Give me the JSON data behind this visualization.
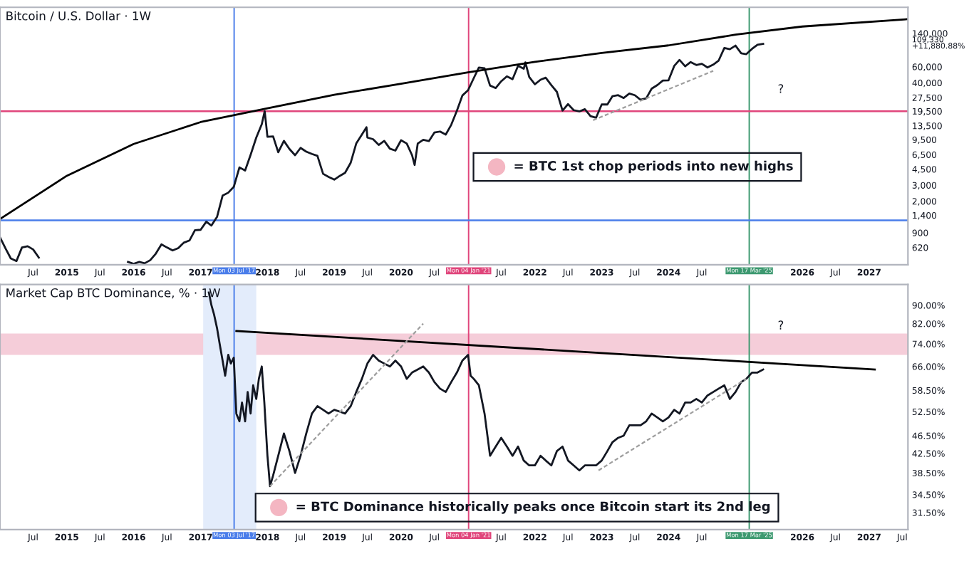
{
  "chart_data": [
    {
      "type": "line",
      "title": "Bitcoin / U.S. Dollar · 1W",
      "log": "y",
      "grid": false,
      "xlim": [
        "2014-01-01",
        "2027-08-01"
      ],
      "xticks": [
        {
          "value": "2014-07-01",
          "label": "Jul"
        },
        {
          "value": "2015-01-01",
          "label": "2015"
        },
        {
          "value": "2015-07-01",
          "label": "Jul"
        },
        {
          "value": "2016-01-01",
          "label": "2016"
        },
        {
          "value": "2016-07-01",
          "label": "Jul"
        },
        {
          "value": "2017-01-01",
          "label": "2017"
        },
        {
          "value": "2018-01-01",
          "label": "2018"
        },
        {
          "value": "2018-07-01",
          "label": "Jul"
        },
        {
          "value": "2019-01-01",
          "label": "2019"
        },
        {
          "value": "2019-07-01",
          "label": "Jul"
        },
        {
          "value": "2020-01-01",
          "label": "2020"
        },
        {
          "value": "2020-07-01",
          "label": "Jul"
        },
        {
          "value": "2021-07-01",
          "label": "Jul"
        },
        {
          "value": "2022-01-01",
          "label": "2022"
        },
        {
          "value": "2022-07-01",
          "label": "Jul"
        },
        {
          "value": "2023-01-01",
          "label": "2023"
        },
        {
          "value": "2023-07-01",
          "label": "Jul"
        },
        {
          "value": "2024-01-01",
          "label": "2024"
        },
        {
          "value": "2024-07-01",
          "label": "Jul"
        },
        {
          "value": "2026-01-01",
          "label": "2026"
        },
        {
          "value": "2026-07-01",
          "label": "Jul"
        },
        {
          "value": "2027-01-01",
          "label": "2027"
        }
      ],
      "ylim": [
        400,
        270000
      ],
      "yticks": [
        620,
        900,
        {
          "value": 1400,
          "label": "1,400"
        },
        {
          "value": 2000,
          "label": "2,000"
        },
        {
          "value": 3000,
          "label": "3,000"
        },
        {
          "value": 4500,
          "label": "4,500"
        },
        {
          "value": 6500,
          "label": "6,500"
        },
        {
          "value": 9500,
          "label": "9,500"
        },
        {
          "value": 13500,
          "label": "13,500"
        },
        {
          "value": 19500,
          "label": "19,500"
        },
        {
          "value": 27500,
          "label": "27,500"
        },
        {
          "value": 40000,
          "label": "40,000"
        },
        {
          "value": 60000,
          "label": "60,000"
        },
        {
          "value": 109330,
          "label": "109,330\n+11,880.88%"
        },
        {
          "value": 140000,
          "label": "140,000"
        }
      ],
      "series": [
        {
          "color": "#131722",
          "x": [
            "2014-01-01",
            "2014-02-01",
            "2014-03-01",
            "2014-04-01",
            "2014-05-01",
            "2014-06-01",
            "2014-07-01",
            "2014-08-01",
            "2014-09-01",
            "2014-10-01",
            "2014-11-01",
            "2014-12-01",
            "2015-01-01",
            "2015-02-01",
            "2015-03-01",
            "2015-04-01",
            "2015-05-01",
            "2015-06-01",
            "2015-07-01",
            "2015-08-01",
            "2015-09-01",
            "2015-10-01",
            "2015-11-01",
            "2015-12-01",
            "2016-01-01",
            "2016-02-01",
            "2016-03-01",
            "2016-04-01",
            "2016-05-01",
            "2016-06-01",
            "2016-07-01",
            "2016-08-01",
            "2016-09-01",
            "2016-10-01",
            "2016-11-01",
            "2016-12-01",
            "2017-01-01",
            "2017-02-01",
            "2017-03-01",
            "2017-04-01",
            "2017-05-01",
            "2017-06-01",
            "2017-07-01",
            "2017-08-01",
            "2017-09-01",
            "2017-10-01",
            "2017-11-01",
            "2017-12-01",
            "2017-12-17",
            "2018-01-01",
            "2018-02-01",
            "2018-03-01",
            "2018-04-01",
            "2018-05-01",
            "2018-06-01",
            "2018-07-01",
            "2018-08-01",
            "2018-09-01",
            "2018-10-01",
            "2018-11-01",
            "2018-12-01",
            "2019-01-01",
            "2019-02-01",
            "2019-03-01",
            "2019-04-01",
            "2019-05-01",
            "2019-06-01",
            "2019-06-26",
            "2019-07-01",
            "2019-08-01",
            "2019-09-01",
            "2019-10-01",
            "2019-11-01",
            "2019-12-01",
            "2020-01-01",
            "2020-02-01",
            "2020-03-01",
            "2020-03-15",
            "2020-04-01",
            "2020-05-01",
            "2020-06-01",
            "2020-07-01",
            "2020-08-01",
            "2020-09-01",
            "2020-10-01",
            "2020-11-01",
            "2020-12-01",
            "2021-01-01",
            "2021-02-01",
            "2021-03-01",
            "2021-04-01",
            "2021-05-01",
            "2021-06-01",
            "2021-07-01",
            "2021-08-01",
            "2021-09-01",
            "2021-10-01",
            "2021-11-01",
            "2021-11-10",
            "2021-12-01",
            "2022-01-01",
            "2022-02-01",
            "2022-03-01",
            "2022-04-01",
            "2022-05-01",
            "2022-06-01",
            "2022-07-01",
            "2022-08-01",
            "2022-09-01",
            "2022-10-01",
            "2022-11-01",
            "2022-12-01",
            "2023-01-01",
            "2023-02-01",
            "2023-03-01",
            "2023-04-01",
            "2023-05-01",
            "2023-06-01",
            "2023-07-01",
            "2023-08-01",
            "2023-09-01",
            "2023-10-01",
            "2023-11-01",
            "2023-12-01",
            "2024-01-01",
            "2024-02-01",
            "2024-03-01",
            "2024-04-01",
            "2024-05-01",
            "2024-06-01",
            "2024-07-01",
            "2024-08-01",
            "2024-09-01",
            "2024-10-01",
            "2024-11-01",
            "2024-12-01",
            "2025-01-01",
            "2025-02-01",
            "2025-03-01",
            "2025-04-01",
            "2025-05-01",
            "2025-06-01"
          ],
          "values": [
            800,
            600,
            470,
            440,
            620,
            640,
            590,
            480,
            null,
            null,
            null,
            null,
            null,
            null,
            null,
            null,
            null,
            null,
            null,
            null,
            null,
            null,
            null,
            430,
            410,
            430,
            415,
            450,
            530,
            670,
            620,
            575,
            610,
            700,
            740,
            960,
            970,
            1190,
            1080,
            1350,
            2300,
            2480,
            2870,
            4700,
            4340,
            6450,
            10000,
            14000,
            19500,
            10200,
            10300,
            6900,
            9200,
            7500,
            6400,
            7700,
            7000,
            6600,
            6300,
            4000,
            3700,
            3450,
            3800,
            4100,
            5300,
            8600,
            10800,
            13000,
            10000,
            9600,
            8300,
            9200,
            7550,
            7200,
            9350,
            8600,
            6400,
            5000,
            8600,
            9450,
            9150,
            11350,
            11650,
            10800,
            13800,
            19700,
            29000,
            33100,
            45000,
            58800,
            57700,
            37300,
            35000,
            41500,
            47100,
            43800,
            61300,
            57000,
            67000,
            46300,
            38500,
            43200,
            45500,
            37700,
            31800,
            19800,
            23300,
            20000,
            19400,
            20500,
            17200,
            16500,
            23100,
            23100,
            28500,
            29200,
            27200,
            30500,
            29200,
            26000,
            27000,
            34500,
            37700,
            42300,
            42600,
            61200,
            71300,
            60600,
            67500,
            62700,
            64600,
            58900,
            63300,
            70200,
            96400,
            93400,
            102400,
            84300,
            82500,
            94200,
            104600,
            107000
          ]
        },
        {
          "color": "#000000",
          "x": [
            "2014-01-01",
            "2015-01-01",
            "2016-01-01",
            "2017-01-01",
            "2018-01-01",
            "2019-01-01",
            "2020-01-01",
            "2021-01-01",
            "2022-01-01",
            "2023-01-01",
            "2024-01-01",
            "2025-01-01",
            "2026-01-01",
            "2027-08-01"
          ],
          "values": [
            1275,
            3800,
            8500,
            14800,
            21000,
            29500,
            39000,
            52000,
            68000,
            85000,
            103000,
            135000,
            166000,
            200000
          ]
        },
        {
          "color": "#9e9e9e",
          "line_style": "dashed",
          "x": [
            "2022-11-15",
            "2024-09-01"
          ],
          "values": [
            15500,
            54000
          ]
        }
      ],
      "ref_lines": [
        {
          "axis": "x",
          "value": "2017-07-03",
          "label": "Mon 03 Jul '17",
          "color": "#4a7dea"
        },
        {
          "axis": "x",
          "value": "2021-01-04",
          "label": "Mon 04 Jan '21",
          "color": "#e0457b"
        },
        {
          "axis": "x",
          "value": "2025-03-17",
          "label": "Mon 17 Mar '25",
          "color": "#3d9970"
        },
        {
          "axis": "y",
          "value": 19500,
          "color": "#e0457b"
        },
        {
          "axis": "y",
          "value": 1230,
          "color": "#4a7dea"
        }
      ],
      "annotations": [
        "= BTC 1st chop periods into new highs",
        "?"
      ]
    },
    {
      "type": "line",
      "title": "Market Cap BTC Dominance, % · 1W",
      "log": "y",
      "grid": false,
      "xlim": [
        "2014-01-01",
        "2027-08-01"
      ],
      "xticks": [
        {
          "value": "2014-07-01",
          "label": "Jul"
        },
        {
          "value": "2015-01-01",
          "label": "2015"
        },
        {
          "value": "2015-07-01",
          "label": "Jul"
        },
        {
          "value": "2016-01-01",
          "label": "2016"
        },
        {
          "value": "2016-07-01",
          "label": "Jul"
        },
        {
          "value": "2017-01-01",
          "label": "2017"
        },
        {
          "value": "2018-01-01",
          "label": "2018"
        },
        {
          "value": "2018-07-01",
          "label": "Jul"
        },
        {
          "value": "2019-01-01",
          "label": "2019"
        },
        {
          "value": "2019-07-01",
          "label": "Jul"
        },
        {
          "value": "2020-01-01",
          "label": "2020"
        },
        {
          "value": "2020-07-01",
          "label": "Jul"
        },
        {
          "value": "2021-07-01",
          "label": "Jul"
        },
        {
          "value": "2022-01-01",
          "label": "2022"
        },
        {
          "value": "2022-07-01",
          "label": "Jul"
        },
        {
          "value": "2023-01-01",
          "label": "2023"
        },
        {
          "value": "2023-07-01",
          "label": "Jul"
        },
        {
          "value": "2024-01-01",
          "label": "2024"
        },
        {
          "value": "2024-07-01",
          "label": "Jul"
        },
        {
          "value": "2026-01-01",
          "label": "2026"
        },
        {
          "value": "2026-07-01",
          "label": "Jul"
        },
        {
          "value": "2027-01-01",
          "label": "2027"
        },
        {
          "value": "2027-07-01",
          "label": "Jul"
        }
      ],
      "ylim": [
        28.9,
        100
      ],
      "yticks": [
        {
          "value": 31.5,
          "label": "31.50%"
        },
        {
          "value": 34.5,
          "label": "34.50%"
        },
        {
          "value": 38.5,
          "label": "38.50%"
        },
        {
          "value": 42.5,
          "label": "42.50%"
        },
        {
          "value": 46.5,
          "label": "46.50%"
        },
        {
          "value": 52.5,
          "label": "52.50%"
        },
        {
          "value": 58.5,
          "label": "58.50%"
        },
        {
          "value": 66,
          "label": "66.00%"
        },
        {
          "value": 74,
          "label": "74.00%"
        },
        {
          "value": 82,
          "label": "82.00%"
        },
        {
          "value": 90,
          "label": "90.00%"
        }
      ],
      "series": [
        {
          "color": "#131722",
          "x": [
            "2017-02-15",
            "2017-03-01",
            "2017-03-15",
            "2017-04-01",
            "2017-04-15",
            "2017-05-01",
            "2017-05-15",
            "2017-06-01",
            "2017-06-15",
            "2017-07-01",
            "2017-07-15",
            "2017-08-01",
            "2017-08-15",
            "2017-09-01",
            "2017-09-15",
            "2017-10-01",
            "2017-10-15",
            "2017-11-01",
            "2017-11-15",
            "2017-12-01",
            "2017-12-15",
            "2018-01-01",
            "2018-01-15",
            "2018-02-01",
            "2018-03-01",
            "2018-04-01",
            "2018-05-01",
            "2018-06-01",
            "2018-07-01",
            "2018-08-01",
            "2018-09-01",
            "2018-10-01",
            "2018-11-01",
            "2018-12-01",
            "2019-01-01",
            "2019-02-01",
            "2019-03-01",
            "2019-04-01",
            "2019-05-01",
            "2019-06-01",
            "2019-07-01",
            "2019-08-01",
            "2019-09-01",
            "2019-10-01",
            "2019-11-01",
            "2019-12-01",
            "2020-01-01",
            "2020-02-01",
            "2020-03-01",
            "2020-04-01",
            "2020-05-01",
            "2020-06-01",
            "2020-07-01",
            "2020-08-01",
            "2020-09-01",
            "2020-10-01",
            "2020-11-01",
            "2020-12-01",
            "2021-01-01",
            "2021-01-15",
            "2021-02-01",
            "2021-03-01",
            "2021-04-01",
            "2021-05-01",
            "2021-06-01",
            "2021-07-01",
            "2021-08-01",
            "2021-09-01",
            "2021-10-01",
            "2021-11-01",
            "2021-12-01",
            "2022-01-01",
            "2022-02-01",
            "2022-03-01",
            "2022-04-01",
            "2022-05-01",
            "2022-06-01",
            "2022-07-01",
            "2022-08-01",
            "2022-09-01",
            "2022-10-01",
            "2022-11-01",
            "2022-12-01",
            "2023-01-01",
            "2023-02-01",
            "2023-03-01",
            "2023-04-01",
            "2023-05-01",
            "2023-06-01",
            "2023-07-01",
            "2023-08-01",
            "2023-09-01",
            "2023-10-01",
            "2023-11-01",
            "2023-12-01",
            "2024-01-01",
            "2024-02-01",
            "2024-03-01",
            "2024-04-01",
            "2024-05-01",
            "2024-06-01",
            "2024-07-01",
            "2024-08-01",
            "2024-09-01",
            "2024-10-01",
            "2024-11-01",
            "2024-12-01",
            "2025-01-01",
            "2025-02-01",
            "2025-03-01",
            "2025-04-01",
            "2025-05-01",
            "2025-06-01"
          ],
          "values": [
            96,
            90,
            86,
            80,
            74,
            68,
            63,
            70,
            67,
            69,
            52,
            50,
            55,
            50,
            58,
            52,
            60,
            56,
            62,
            66,
            55,
            42,
            36,
            38,
            42,
            47,
            43,
            38.5,
            42,
            47,
            52,
            54,
            53,
            52,
            53,
            52.5,
            52,
            54,
            58,
            62,
            67,
            70,
            68,
            67,
            66,
            68,
            66,
            62,
            64,
            65,
            66,
            64,
            61,
            59,
            58,
            61,
            64,
            68,
            70,
            63,
            62,
            60,
            52,
            42,
            44,
            46,
            44,
            42,
            44,
            41,
            40,
            40,
            42,
            41,
            40,
            43,
            44,
            41,
            40,
            39,
            40,
            40,
            40,
            41,
            43,
            45,
            46,
            46.5,
            49,
            49,
            49,
            50,
            52,
            51,
            50,
            51,
            53,
            52,
            55,
            55,
            56,
            55,
            57,
            58,
            59,
            60,
            56,
            58,
            61,
            62,
            64,
            64,
            65
          ]
        },
        {
          "color": "#000000",
          "x": [
            "2017-07-15",
            "2027-02-01"
          ],
          "values": [
            79,
            65
          ]
        },
        {
          "color": "#9e9e9e",
          "line_style": "dashed",
          "x": [
            "2018-01-15",
            "2020-05-01"
          ],
          "values": [
            36,
            82
          ]
        },
        {
          "color": "#9e9e9e",
          "line_style": "dashed",
          "x": [
            "2022-12-15",
            "2025-03-01"
          ],
          "values": [
            39,
            62
          ]
        }
      ],
      "ref_lines": [
        {
          "axis": "x",
          "value": "2017-07-03",
          "label": "Mon 03 Jul '17",
          "color": "#4a7dea"
        },
        {
          "axis": "x",
          "value": "2021-01-04",
          "label": "Mon 04 Jan '21",
          "color": "#e0457b"
        },
        {
          "axis": "x",
          "value": "2025-03-17",
          "label": "Mon 17 Mar '25",
          "color": "#3d9970"
        }
      ],
      "bands": [
        {
          "axis": "y",
          "from": 70,
          "to": 78,
          "color": "#f5cdd9"
        },
        {
          "axis": "x",
          "from": "2017-01-15",
          "to": "2017-11-01",
          "color": "#e3ecfb"
        }
      ],
      "annotations": [
        "= BTC Dominance historically peaks once Bitcoin start its 2nd leg",
        "?"
      ]
    }
  ]
}
